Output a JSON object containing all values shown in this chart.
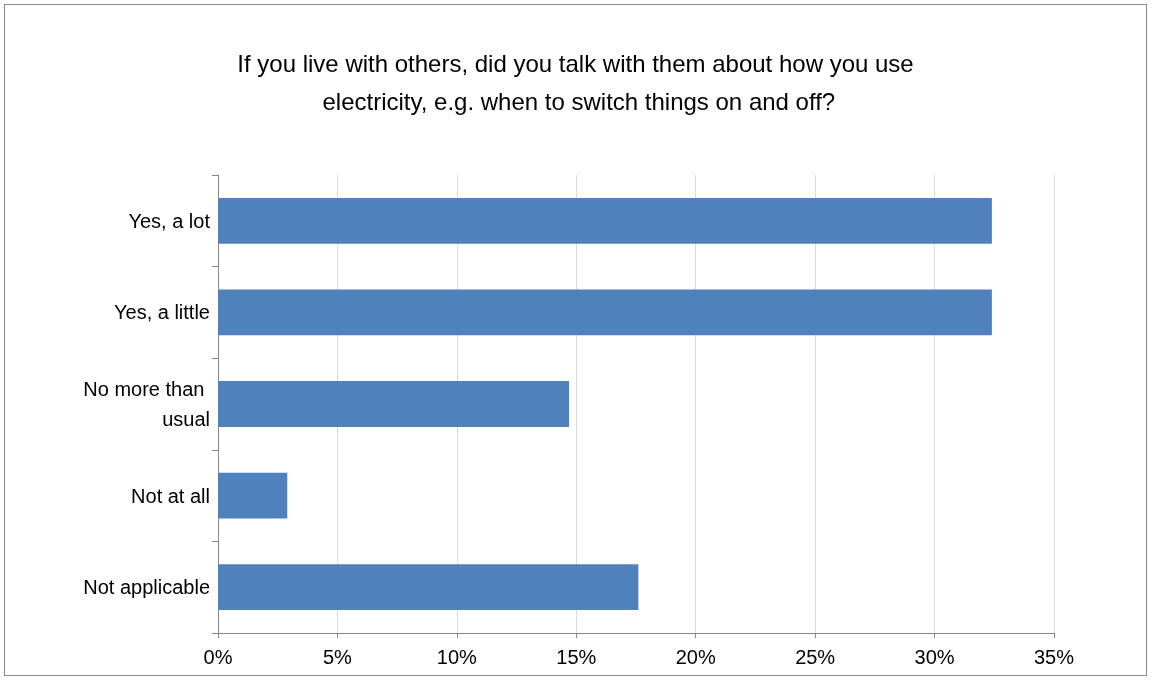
{
  "chart_data": {
    "type": "bar",
    "orientation": "horizontal",
    "title": "If you live with others, did you talk with them about how you use electricity, e.g. when to switch things on and off?",
    "categories": [
      "Yes, a lot",
      "Yes, a little",
      "No more than usual",
      "Not at all",
      "Not applicable"
    ],
    "values": [
      32.4,
      32.4,
      14.7,
      2.9,
      17.6
    ],
    "color": "#4f81bd",
    "xlim": [
      0,
      35
    ],
    "xticks": [
      {
        "value": 0,
        "label": "0%"
      },
      {
        "value": 5,
        "label": "5%"
      },
      {
        "value": 10,
        "label": "10%"
      },
      {
        "value": 15,
        "label": "15%"
      },
      {
        "value": 20,
        "label": "20%"
      },
      {
        "value": 25,
        "label": "25%"
      },
      {
        "value": 30,
        "label": "30%"
      },
      {
        "value": 35,
        "label": "35%"
      }
    ],
    "grid": "x"
  }
}
